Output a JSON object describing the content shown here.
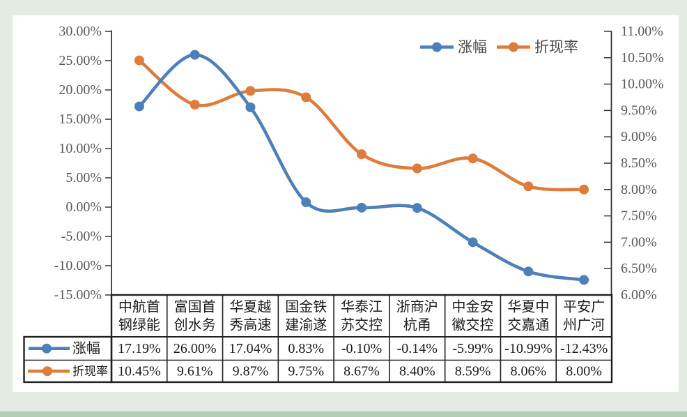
{
  "colors": {
    "background": "#e3ebe3",
    "bottom_strip": "#b4ccb4",
    "panel": "#ffffff",
    "rise_series": "#4d80ba",
    "discount_series": "#dd7c3c",
    "axis_text": "#595959",
    "table_text": "#1a1a1a",
    "border": "#1f1f1f"
  },
  "legend": {
    "items": [
      {
        "label": "涨幅",
        "color": "#4d80ba"
      },
      {
        "label": "折现率",
        "color": "#dd7c3c"
      }
    ]
  },
  "chart_data": {
    "type": "line",
    "smooth": true,
    "grid": false,
    "legend_position": "top-right",
    "data_table": true,
    "categories": [
      "中航首钢绿能",
      "富国首创水务",
      "华夏越秀高速",
      "国金铁建渝遂",
      "华泰江苏交控",
      "浙商沪杭甬",
      "中金安徽交控",
      "华夏中交嘉通",
      "平安广州广河"
    ],
    "series": [
      {
        "name": "涨幅",
        "axis": "left",
        "color": "#4d80ba",
        "values": [
          17.19,
          26.0,
          17.04,
          0.83,
          -0.1,
          -0.14,
          -5.99,
          -10.99,
          -12.43
        ],
        "labels": [
          "17.19%",
          "26.00%",
          "17.04%",
          "0.83%",
          "-0.10%",
          "-0.14%",
          "-5.99%",
          "-10.99%",
          "-12.43%"
        ]
      },
      {
        "name": "折现率",
        "axis": "right",
        "color": "#dd7c3c",
        "values": [
          10.45,
          9.61,
          9.87,
          9.75,
          8.67,
          8.4,
          8.59,
          8.06,
          8.0
        ],
        "labels": [
          "10.45%",
          "9.61%",
          "9.87%",
          "9.75%",
          "8.67%",
          "8.40%",
          "8.59%",
          "8.06%",
          "8.00%"
        ]
      }
    ],
    "left_axis": {
      "min": -15,
      "max": 30,
      "step": 5,
      "ticks": [
        "30.00%",
        "25.00%",
        "20.00%",
        "15.00%",
        "10.00%",
        "5.00%",
        "0.00%",
        "-5.00%",
        "-10.00%",
        "-15.00%"
      ]
    },
    "right_axis": {
      "min": 6,
      "max": 11,
      "step": 0.5,
      "ticks": [
        "11.00%",
        "10.50%",
        "10.00%",
        "9.50%",
        "9.00%",
        "8.50%",
        "8.00%",
        "7.50%",
        "7.00%",
        "6.50%",
        "6.00%"
      ]
    }
  }
}
